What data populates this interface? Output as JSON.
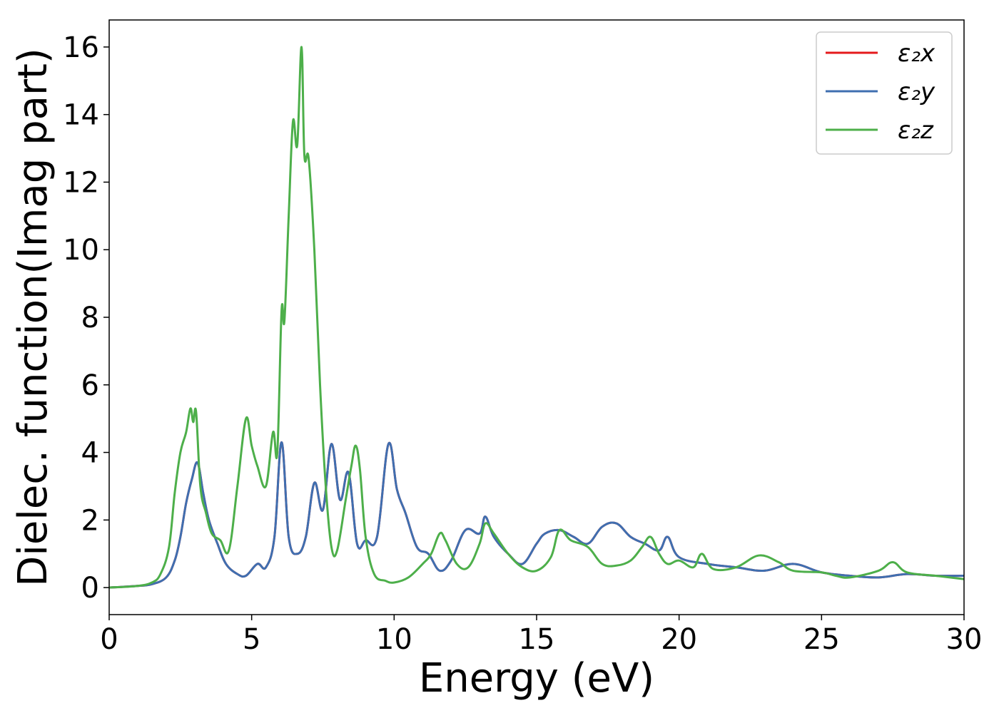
{
  "chart_data": {
    "type": "line",
    "xlabel": "Energy (eV)",
    "ylabel": "Dielec. function(Imag part)",
    "xlim": [
      0,
      30
    ],
    "ylim": [
      -0.8,
      16.8
    ],
    "xticks": [
      0,
      5,
      10,
      15,
      20,
      25,
      30
    ],
    "yticks": [
      0,
      2,
      4,
      6,
      8,
      10,
      12,
      14,
      16
    ],
    "grid": false,
    "legend_position": "top-right",
    "series": [
      {
        "name": "ε₂x",
        "color": "#e41a1c",
        "x": [
          0,
          1,
          1.5,
          2,
          2.3,
          2.5,
          2.7,
          2.9,
          3.1,
          3.3,
          3.5,
          3.8,
          4.1,
          4.5,
          4.8,
          5.2,
          5.5,
          5.8,
          6.05,
          6.3,
          6.6,
          6.9,
          7.2,
          7.5,
          7.8,
          8.1,
          8.4,
          8.7,
          9.0,
          9.4,
          9.8,
          10.1,
          10.4,
          10.8,
          11.2,
          11.6,
          12.0,
          12.5,
          13.0,
          13.2,
          13.5,
          14.0,
          14.5,
          15.0,
          15.3,
          15.8,
          16.3,
          16.8,
          17.3,
          17.8,
          18.3,
          18.8,
          19.3,
          19.6,
          20.0,
          21,
          22,
          23,
          24,
          25,
          26,
          27,
          28,
          29,
          30
        ],
        "values": [
          0,
          0.05,
          0.1,
          0.3,
          0.8,
          1.5,
          2.5,
          3.2,
          3.7,
          2.8,
          2.0,
          1.3,
          0.7,
          0.4,
          0.35,
          0.7,
          0.6,
          1.5,
          4.3,
          1.5,
          1.0,
          1.5,
          3.1,
          2.3,
          4.25,
          2.6,
          3.4,
          1.3,
          1.4,
          1.5,
          4.25,
          2.9,
          2.2,
          1.2,
          1.0,
          0.5,
          0.8,
          1.7,
          1.6,
          2.1,
          1.5,
          1.0,
          0.7,
          1.3,
          1.6,
          1.7,
          1.5,
          1.3,
          1.8,
          1.9,
          1.5,
          1.3,
          1.1,
          1.5,
          0.9,
          0.7,
          0.6,
          0.5,
          0.7,
          0.45,
          0.35,
          0.3,
          0.4,
          0.35,
          0.35
        ]
      },
      {
        "name": "ε₂y",
        "color": "#3f6fb0",
        "x": [
          0,
          1,
          1.5,
          2,
          2.3,
          2.5,
          2.7,
          2.9,
          3.1,
          3.3,
          3.5,
          3.8,
          4.1,
          4.5,
          4.8,
          5.2,
          5.5,
          5.8,
          6.05,
          6.3,
          6.6,
          6.9,
          7.2,
          7.5,
          7.8,
          8.1,
          8.4,
          8.7,
          9.0,
          9.4,
          9.8,
          10.1,
          10.4,
          10.8,
          11.2,
          11.6,
          12.0,
          12.5,
          13.0,
          13.2,
          13.5,
          14.0,
          14.5,
          15.0,
          15.3,
          15.8,
          16.3,
          16.8,
          17.3,
          17.8,
          18.3,
          18.8,
          19.3,
          19.6,
          20.0,
          21,
          22,
          23,
          24,
          25,
          26,
          27,
          28,
          29,
          30
        ],
        "values": [
          0,
          0.05,
          0.1,
          0.3,
          0.8,
          1.5,
          2.5,
          3.2,
          3.7,
          2.8,
          2.0,
          1.3,
          0.7,
          0.4,
          0.35,
          0.7,
          0.6,
          1.5,
          4.3,
          1.5,
          1.0,
          1.5,
          3.1,
          2.3,
          4.25,
          2.6,
          3.4,
          1.3,
          1.4,
          1.5,
          4.25,
          2.9,
          2.2,
          1.2,
          1.0,
          0.5,
          0.8,
          1.7,
          1.6,
          2.1,
          1.5,
          1.0,
          0.7,
          1.3,
          1.6,
          1.7,
          1.5,
          1.3,
          1.8,
          1.9,
          1.5,
          1.3,
          1.1,
          1.5,
          0.9,
          0.7,
          0.6,
          0.5,
          0.7,
          0.45,
          0.35,
          0.3,
          0.4,
          0.35,
          0.35
        ]
      },
      {
        "name": "ε₂z",
        "color": "#4daf4a",
        "x": [
          0,
          1,
          1.5,
          1.8,
          2.1,
          2.3,
          2.5,
          2.7,
          2.85,
          2.95,
          3.05,
          3.2,
          3.4,
          3.6,
          3.9,
          4.2,
          4.5,
          4.8,
          5.0,
          5.2,
          5.5,
          5.75,
          5.9,
          6.05,
          6.15,
          6.3,
          6.45,
          6.6,
          6.75,
          6.85,
          7.0,
          7.2,
          7.4,
          7.6,
          7.8,
          8.0,
          8.3,
          8.5,
          8.65,
          8.8,
          9.0,
          9.3,
          9.7,
          10.0,
          10.5,
          11.0,
          11.3,
          11.6,
          11.8,
          12.2,
          12.6,
          13.0,
          13.2,
          13.5,
          14.0,
          14.5,
          15.0,
          15.5,
          15.8,
          16.2,
          16.8,
          17.3,
          17.8,
          18.3,
          18.7,
          19.0,
          19.3,
          19.6,
          20.0,
          20.5,
          20.8,
          21.2,
          22,
          22.8,
          23.5,
          24,
          25,
          25.5,
          26,
          27,
          27.5,
          28,
          29,
          30
        ],
        "values": [
          0,
          0.05,
          0.15,
          0.4,
          1.2,
          2.8,
          4.0,
          4.6,
          5.3,
          4.9,
          5.2,
          3.0,
          2.2,
          1.6,
          1.4,
          1.1,
          3.0,
          5.0,
          4.2,
          3.6,
          3.0,
          4.6,
          4.0,
          8.2,
          7.9,
          11.0,
          13.8,
          13.1,
          16.0,
          12.8,
          12.7,
          10.0,
          6.0,
          3.0,
          1.2,
          1.1,
          2.6,
          3.6,
          4.2,
          3.5,
          1.5,
          0.4,
          0.2,
          0.15,
          0.3,
          0.7,
          1.0,
          1.6,
          1.4,
          0.7,
          0.6,
          1.3,
          1.9,
          1.6,
          1.0,
          0.6,
          0.5,
          0.9,
          1.7,
          1.4,
          1.2,
          0.7,
          0.65,
          0.8,
          1.2,
          1.5,
          1.0,
          0.7,
          0.8,
          0.6,
          1.0,
          0.55,
          0.6,
          0.95,
          0.75,
          0.5,
          0.45,
          0.35,
          0.3,
          0.5,
          0.75,
          0.45,
          0.35,
          0.25
        ]
      }
    ]
  }
}
